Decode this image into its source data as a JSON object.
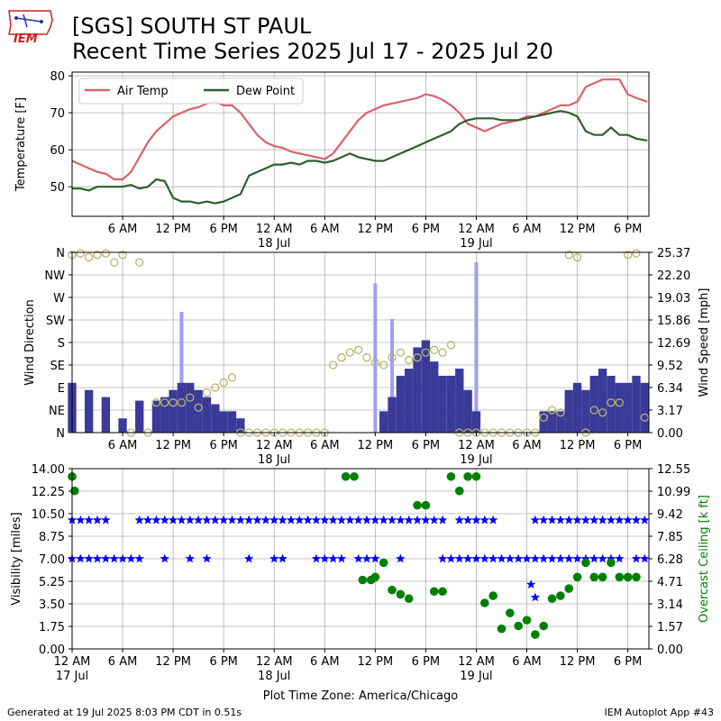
{
  "header": {
    "logo_text": "IEM",
    "title_line1": "[SGS] SOUTH ST PAUL",
    "title_line2": "Recent Time Series 2025 Jul 17 - 2025 Jul 20"
  },
  "footer": {
    "generated": "Generated at 19 Jul 2025 8:03 PM CDT in 0.51s",
    "app": "IEM Autoplot App #43"
  },
  "colors": {
    "air_temp": "#d9626b",
    "dew_point": "#2e5e2e",
    "wind_speed": "#3a3a99",
    "wind_gust": "#9e9ef5",
    "wind_dir": "#b5b56e",
    "visibility": "#0000ff",
    "ceiling": "#008000"
  },
  "chart_data": [
    {
      "type": "line",
      "ylabel": "Temperature [F]",
      "ylim": [
        42,
        81
      ],
      "yticks": [
        50,
        60,
        70,
        80
      ],
      "grid": true,
      "legend_position": "top-left",
      "x_ticks": [
        {
          "h": 6,
          "label": "6 AM",
          "sub": ""
        },
        {
          "h": 12,
          "label": "12 PM",
          "sub": ""
        },
        {
          "h": 18,
          "label": "6 PM",
          "sub": ""
        },
        {
          "h": 24,
          "label": "12 AM",
          "sub": "18 Jul"
        },
        {
          "h": 30,
          "label": "6 AM",
          "sub": ""
        },
        {
          "h": 36,
          "label": "12 PM",
          "sub": ""
        },
        {
          "h": 42,
          "label": "6 PM",
          "sub": ""
        },
        {
          "h": 48,
          "label": "12 AM",
          "sub": "19 Jul"
        },
        {
          "h": 54,
          "label": "6 AM",
          "sub": ""
        },
        {
          "h": 60,
          "label": "12 PM",
          "sub": ""
        },
        {
          "h": 66,
          "label": "6 PM",
          "sub": ""
        }
      ],
      "x_unit": "hours since 12 AM 17 Jul",
      "xlim": [
        0,
        68.5
      ],
      "series": [
        {
          "name": "Air Temp",
          "x": [
            0,
            1,
            2,
            3,
            4,
            5,
            6,
            7,
            8,
            9,
            10,
            11,
            12,
            13,
            14,
            15,
            16,
            17,
            18,
            19,
            20,
            21,
            22,
            23,
            24,
            25,
            26,
            27,
            28,
            29,
            30,
            31,
            32,
            33,
            34,
            35,
            36,
            37,
            38,
            39,
            40,
            41,
            42,
            43,
            44,
            45,
            46,
            47,
            48,
            49,
            50,
            51,
            52,
            53,
            54,
            55,
            56,
            57,
            58,
            59,
            60,
            61,
            62,
            63,
            64,
            65,
            66,
            67,
            68.3
          ],
          "y": [
            57,
            56,
            55,
            54,
            53.5,
            52,
            52,
            54,
            58,
            62,
            65,
            67,
            69,
            70,
            71,
            71.5,
            72.5,
            73,
            72,
            72,
            70,
            67,
            64,
            62,
            61,
            60.5,
            59.5,
            59,
            58.5,
            58,
            57.5,
            59,
            62,
            65,
            68,
            70,
            71,
            72,
            72.5,
            73,
            73.5,
            74,
            75,
            74.5,
            73.5,
            72,
            70,
            67,
            66,
            65,
            66,
            67,
            67.5,
            68,
            69,
            69,
            70,
            71,
            72,
            72,
            73,
            77,
            78,
            79,
            79,
            79,
            75,
            74,
            73
          ]
        },
        {
          "name": "Dew Point",
          "x": [
            0,
            1,
            2,
            3,
            4,
            5,
            6,
            7,
            8,
            9,
            10,
            11,
            12,
            13,
            14,
            15,
            16,
            17,
            18,
            19,
            20,
            21,
            22,
            23,
            24,
            25,
            26,
            27,
            28,
            29,
            30,
            31,
            32,
            33,
            34,
            35,
            36,
            37,
            38,
            39,
            40,
            41,
            42,
            43,
            44,
            45,
            46,
            47,
            48,
            49,
            50,
            51,
            52,
            53,
            54,
            55,
            56,
            57,
            58,
            59,
            60,
            61,
            62,
            63,
            64,
            65,
            66,
            67,
            68.3
          ],
          "y": [
            49.5,
            49.5,
            49,
            50,
            50,
            50,
            50,
            50.5,
            49.5,
            50,
            52,
            51.5,
            47,
            46,
            46,
            45.5,
            46,
            45.5,
            46,
            47,
            48,
            53,
            54,
            55,
            56,
            56,
            56.5,
            56,
            57,
            57,
            56.5,
            57,
            58,
            59,
            58,
            57.5,
            57,
            57,
            58,
            59,
            60,
            61,
            62,
            63,
            64,
            65,
            67,
            68,
            68.5,
            68.5,
            68.5,
            68,
            68,
            68,
            68.5,
            69,
            69.5,
            70,
            70.5,
            70,
            69,
            65,
            64,
            64,
            66,
            64,
            64,
            63,
            62.5
          ]
        }
      ]
    },
    {
      "type": "bar",
      "ylabel": "Wind Direction",
      "y2label": "Wind Speed [mph]",
      "direction_ticks": [
        "N",
        "NE",
        "E",
        "SE",
        "S",
        "SW",
        "W",
        "NW",
        "N"
      ],
      "speed_ticks": [
        "0.00",
        "3.17",
        "6.34",
        "9.52",
        "12.69",
        "15.86",
        "19.03",
        "22.20",
        "25.37"
      ],
      "speed_max": 25.37,
      "grid": true,
      "speed_x": [
        0,
        2,
        4,
        6,
        8,
        10,
        11,
        12,
        13,
        14,
        15,
        16,
        17,
        18,
        19,
        20,
        21,
        22,
        23,
        24,
        25,
        26,
        27,
        28,
        29,
        30,
        31,
        32,
        33,
        34,
        35,
        36,
        37,
        38,
        39,
        40,
        41,
        42,
        43,
        44,
        45,
        46,
        47,
        48,
        49,
        50,
        51,
        52,
        53,
        54,
        55,
        56,
        57,
        58,
        59,
        60,
        61,
        62,
        63,
        64,
        65,
        66,
        67,
        68
      ],
      "speed_y": [
        7,
        6,
        5,
        2,
        4.5,
        4.5,
        5,
        6,
        7,
        7,
        6,
        5,
        4,
        3,
        3,
        2,
        0,
        0,
        0,
        0,
        0,
        0,
        0,
        0,
        0,
        0,
        0,
        0,
        0,
        0,
        0,
        0,
        3,
        5,
        8,
        9,
        12,
        13,
        10,
        8,
        8,
        9,
        6,
        3,
        0,
        0,
        0,
        0,
        0,
        0,
        0,
        3,
        3,
        3,
        6,
        7,
        6,
        8,
        9,
        8,
        7,
        7,
        8,
        7
      ],
      "gust_x": [
        13,
        36,
        38,
        48
      ],
      "gust_y": [
        17,
        21,
        16,
        24
      ],
      "direction_x": [
        0,
        1,
        2,
        3,
        4,
        5,
        6,
        7,
        8,
        9,
        10,
        11,
        12,
        13,
        14,
        15,
        16,
        17,
        18,
        19,
        20,
        21,
        22,
        23,
        24,
        25,
        26,
        27,
        28,
        29,
        30,
        31,
        32,
        33,
        34,
        35,
        36,
        37,
        38,
        39,
        40,
        41,
        42,
        43,
        44,
        45,
        46,
        47,
        48,
        49,
        50,
        51,
        52,
        53,
        54,
        55,
        56,
        57,
        58,
        59,
        60,
        61,
        62,
        63,
        64,
        65,
        66,
        67,
        68
      ],
      "direction_y": [
        355,
        358,
        350,
        355,
        358,
        340,
        355,
        0,
        340,
        0,
        60,
        60,
        60,
        60,
        70,
        50,
        80,
        90,
        100,
        110,
        0,
        0,
        0,
        0,
        0,
        0,
        0,
        0,
        0,
        0,
        0,
        135,
        150,
        160,
        165,
        150,
        140,
        135,
        150,
        160,
        145,
        150,
        160,
        165,
        160,
        175,
        0,
        0,
        0,
        0,
        0,
        0,
        0,
        0,
        0,
        0,
        30,
        45,
        40,
        355,
        350,
        0,
        45,
        40,
        60,
        60,
        355,
        358,
        30
      ]
    },
    {
      "type": "scatter",
      "ylabel": "Visibility [miles]",
      "y2label": "Overcast Ceiling [k ft]",
      "vis_ticks": [
        "0.00",
        "1.75",
        "3.50",
        "5.25",
        "7.00",
        "8.75",
        "10.50",
        "12.25",
        "14.00"
      ],
      "ceil_ticks": [
        "0.00",
        "1.57",
        "3.14",
        "4.71",
        "6.28",
        "7.85",
        "9.42",
        "10.99",
        "12.55"
      ],
      "vis_max": 14.0,
      "ceil_max": 12.55,
      "grid": true,
      "x_ticks": [
        {
          "h": 0,
          "label": "12 AM",
          "sub": "17 Jul"
        },
        {
          "h": 6,
          "label": "6 AM",
          "sub": ""
        },
        {
          "h": 12,
          "label": "12 PM",
          "sub": ""
        },
        {
          "h": 18,
          "label": "6 PM",
          "sub": ""
        },
        {
          "h": 24,
          "label": "12 AM",
          "sub": "18 Jul"
        },
        {
          "h": 30,
          "label": "6 AM",
          "sub": ""
        },
        {
          "h": 36,
          "label": "12 PM",
          "sub": ""
        },
        {
          "h": 42,
          "label": "6 PM",
          "sub": ""
        },
        {
          "h": 48,
          "label": "12 AM",
          "sub": "19 Jul"
        },
        {
          "h": 54,
          "label": "6 AM",
          "sub": ""
        },
        {
          "h": 60,
          "label": "12 PM",
          "sub": ""
        },
        {
          "h": 66,
          "label": "6 PM",
          "sub": ""
        }
      ],
      "xlabel": "Plot Time Zone: America/Chicago",
      "vis_x": [
        0,
        1,
        2,
        3,
        4,
        8,
        9,
        10,
        11,
        12,
        13,
        14,
        15,
        16,
        17,
        18,
        19,
        20,
        21,
        22,
        23,
        24,
        25,
        26,
        27,
        28,
        29,
        30,
        31,
        32,
        33,
        34,
        35,
        36,
        37,
        38,
        39,
        40,
        41,
        42,
        43,
        44,
        46,
        47,
        48,
        49,
        50,
        55,
        56,
        57,
        58,
        59,
        60,
        61,
        62,
        63,
        64,
        65,
        66,
        67,
        68,
        0,
        1,
        2,
        3,
        4,
        5,
        6,
        7,
        8,
        11,
        14,
        16,
        21,
        24,
        25,
        29,
        30,
        31,
        32,
        34,
        35,
        36,
        39,
        44,
        45,
        46,
        47,
        48,
        49,
        50,
        51,
        52,
        53,
        54,
        55,
        56,
        57,
        58,
        59,
        60,
        61,
        62,
        63,
        64,
        65,
        67,
        68,
        54.5,
        55
      ],
      "vis_y": [
        10,
        10,
        10,
        10,
        10,
        10,
        10,
        10,
        10,
        10,
        10,
        10,
        10,
        10,
        10,
        10,
        10,
        10,
        10,
        10,
        10,
        10,
        10,
        10,
        10,
        10,
        10,
        10,
        10,
        10,
        10,
        10,
        10,
        10,
        10,
        10,
        10,
        10,
        10,
        10,
        10,
        10,
        10,
        10,
        10,
        10,
        10,
        10,
        10,
        10,
        10,
        10,
        10,
        10,
        10,
        10,
        10,
        10,
        10,
        10,
        10,
        7,
        7,
        7,
        7,
        7,
        7,
        7,
        7,
        7,
        7,
        7,
        7,
        7,
        7,
        7,
        7,
        7,
        7,
        7,
        7,
        7,
        7,
        7,
        7,
        7,
        7,
        7,
        7,
        7,
        7,
        7,
        7,
        7,
        7,
        7,
        7,
        7,
        7,
        7,
        7,
        7,
        7,
        7,
        7,
        7,
        7,
        7,
        5,
        4
      ],
      "ceil_x": [
        0,
        0.3,
        32.5,
        33.5,
        34.5,
        35.5,
        36,
        37,
        38,
        39,
        40,
        41,
        42,
        43,
        44,
        45,
        46,
        47,
        48,
        49,
        50,
        51,
        52,
        53,
        54,
        55,
        56,
        57,
        58,
        59,
        60,
        61,
        62,
        63,
        64,
        65,
        66,
        67
      ],
      "ceil_y": [
        12,
        11,
        12,
        12,
        4.8,
        4.8,
        5,
        6,
        4.1,
        3.8,
        3.5,
        10,
        10,
        4,
        4,
        12,
        11,
        12,
        12,
        3.2,
        3.7,
        1.4,
        2.5,
        1.6,
        2.0,
        1.0,
        1.6,
        3.5,
        3.7,
        4.2,
        5,
        6,
        5,
        5,
        6,
        5,
        5,
        5
      ]
    }
  ]
}
